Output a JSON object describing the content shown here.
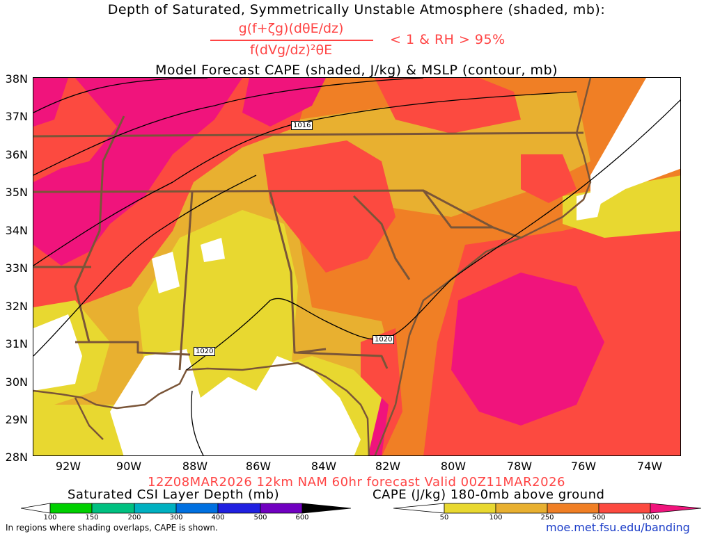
{
  "title": {
    "line1": "Depth of Saturated, Symmetrically Unstable Atmosphere (shaded, mb):",
    "numerator": "g(f+ζg)(dθE/dz)",
    "denominator": "f(dVg/dz)²θE",
    "condition": "< 1 & RH > 95%",
    "line2": "Model Forecast CAPE (shaded, J/kg) & MSLP (contour, mb)"
  },
  "map": {
    "lat_labels": [
      "38N",
      "37N",
      "36N",
      "35N",
      "34N",
      "33N",
      "32N",
      "31N",
      "30N",
      "29N",
      "28N"
    ],
    "lon_labels": [
      "92W",
      "90W",
      "88W",
      "86W",
      "84W",
      "82W",
      "80W",
      "78W",
      "76W",
      "74W"
    ],
    "isobar_labels": [
      "1016",
      "1020",
      "1020"
    ],
    "colors": {
      "white": "#ffffff",
      "yellow": "#e8d830",
      "light_orange": "#e8b030",
      "orange": "#f07f25",
      "red": "#fc4a40",
      "magenta": "#f0147c",
      "border": "#7a5538"
    }
  },
  "forecast_line": "12Z08MAR2026 12km NAM 60hr forecast Valid 00Z11MAR2026",
  "legend_left": {
    "label": "Saturated CSI Layer Depth (mb)",
    "ticks": [
      "100",
      "150",
      "200",
      "300",
      "400",
      "500",
      "600"
    ],
    "colors": [
      "#ffffff",
      "#00d000",
      "#00c080",
      "#00b0c0",
      "#0070e0",
      "#2020e0",
      "#7000c0",
      "#000000"
    ]
  },
  "legend_right": {
    "label": "CAPE (J/kg) 180-0mb above ground",
    "ticks": [
      "50",
      "100",
      "250",
      "500",
      "1000"
    ],
    "colors": [
      "#ffffff",
      "#e8d830",
      "#e8b030",
      "#f07f25",
      "#fc4a40",
      "#f0147c"
    ]
  },
  "footnote": "In regions where shading overlaps, CAPE is shown.",
  "credit": "moe.met.fsu.edu/banding"
}
